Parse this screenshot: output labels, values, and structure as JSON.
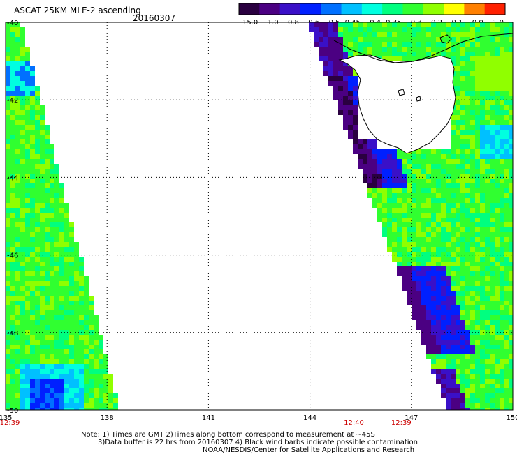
{
  "header": {
    "title": "ASCAT 25KM MLE-2 ascending",
    "date": "20160307"
  },
  "colorbar": {
    "labels": [
      "-15.0",
      "-1.0",
      "-0.8",
      "-0.6",
      "-0.5",
      "-0.45",
      "-0.4",
      "-0.35",
      "-0.3",
      "-0.2",
      "-0.1",
      "0.0",
      "1.0"
    ],
    "colors": [
      "#2a0040",
      "#4b0082",
      "#3a10c8",
      "#0020ff",
      "#0070ff",
      "#00c0ff",
      "#00ffe0",
      "#00ff80",
      "#30ff30",
      "#90ff00",
      "#ffff00",
      "#ff8000",
      "#ff2000"
    ]
  },
  "map": {
    "lon_labels": [
      "135",
      "138",
      "141",
      "144",
      "147",
      "150"
    ],
    "lat_labels": [
      "-40",
      "-42",
      "-44",
      "-46",
      "-48",
      "-50"
    ],
    "time_labels": [
      {
        "text": "12:39",
        "lon": 135
      },
      {
        "text": "12:40",
        "lon": 145.3
      },
      {
        "text": "12:39",
        "lon": 146.7
      }
    ],
    "time_color": "#cc0000",
    "land_region": "Tasmania"
  },
  "notes": {
    "line1": "Note: 1) Times are GMT 2)Times along bottom correspond to measurement at ~45S",
    "line2": "3)Data buffer is 22 hrs from 20160307 4) Black wind barbs indicate possible contamination",
    "line3": "NOAA/NESDIS/Center for Satellite Applications and Research"
  }
}
